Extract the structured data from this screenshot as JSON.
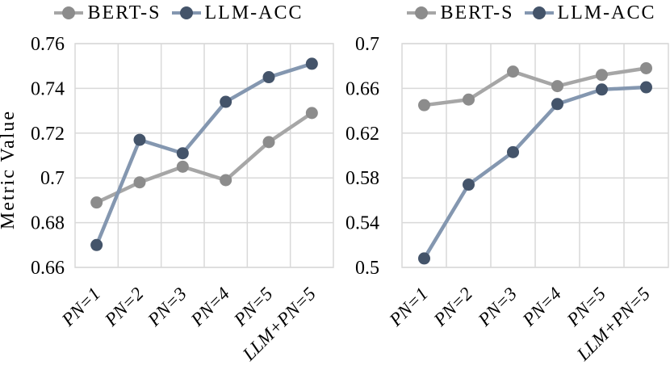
{
  "page": {
    "background": "#ffffff"
  },
  "colors": {
    "gridline": "#d9d9d9",
    "text": "#000000"
  },
  "chart_data": [
    {
      "type": "line",
      "title": "",
      "xlabel": "",
      "ylabel": "Metric Value",
      "categories": [
        "PN=1",
        "PN=2",
        "PN=3",
        "PN=4",
        "PN=5",
        "LLM+PN=5"
      ],
      "series": [
        {
          "name": "BERT-S",
          "values": [
            0.689,
            0.698,
            0.705,
            0.699,
            0.716,
            0.729
          ],
          "line_color": "#a6a6a6",
          "marker_color": "#8c8c8c"
        },
        {
          "name": "LLM-ACC",
          "values": [
            0.67,
            0.717,
            0.711,
            0.734,
            0.745,
            0.751
          ],
          "line_color": "#8497b0",
          "marker_color": "#44546a"
        }
      ],
      "ylim": [
        0.66,
        0.76
      ],
      "yticks": [
        0.66,
        0.68,
        0.7,
        0.72,
        0.74,
        0.76
      ],
      "ytick_labels": [
        "0.66",
        "0.68",
        "0.7",
        "0.72",
        "0.74",
        "0.76"
      ],
      "grid": true,
      "legend_position": "top"
    },
    {
      "type": "line",
      "title": "",
      "xlabel": "",
      "ylabel": "",
      "categories": [
        "PN=1",
        "PN=2",
        "PN=3",
        "PN=4",
        "PN=5",
        "LLM+PN=5"
      ],
      "series": [
        {
          "name": "BERT-S",
          "values": [
            0.645,
            0.65,
            0.675,
            0.662,
            0.672,
            0.678
          ],
          "line_color": "#a6a6a6",
          "marker_color": "#8c8c8c"
        },
        {
          "name": "LLM-ACC",
          "values": [
            0.508,
            0.574,
            0.603,
            0.646,
            0.659,
            0.661
          ],
          "line_color": "#8497b0",
          "marker_color": "#44546a"
        }
      ],
      "ylim": [
        0.5,
        0.7
      ],
      "yticks": [
        0.5,
        0.54,
        0.58,
        0.62,
        0.66,
        0.7
      ],
      "ytick_labels": [
        "0.5",
        "0.54",
        "0.58",
        "0.62",
        "0.66",
        "0.7"
      ],
      "grid": true,
      "legend_position": "top"
    }
  ]
}
